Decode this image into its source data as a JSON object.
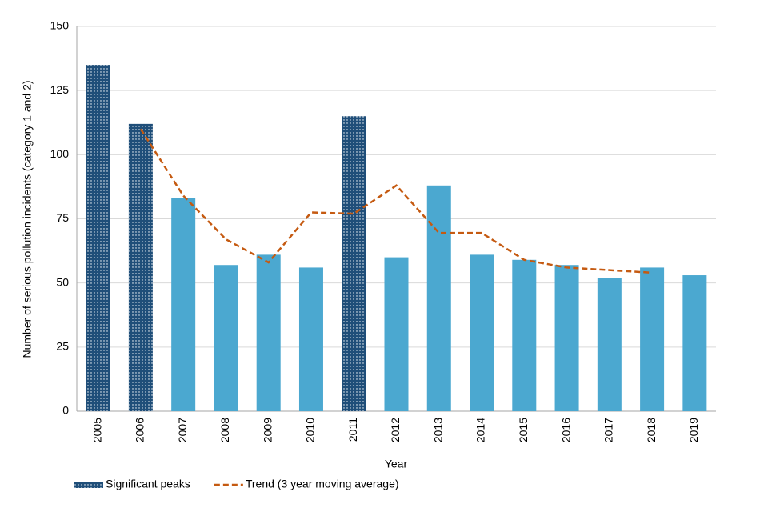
{
  "chart_data": {
    "type": "bar",
    "x_label": "Year",
    "y_label": "Number of serious pollution  incidents (category 1 and 2)",
    "categories": [
      "2005",
      "2006",
      "2007",
      "2008",
      "2009",
      "2010",
      "2011",
      "2012",
      "2013",
      "2014",
      "2015",
      "2016",
      "2017",
      "2018",
      "2019"
    ],
    "series": [
      {
        "name": "Significant peaks",
        "type": "bar",
        "color": "#1f4e79",
        "pattern": "dots",
        "values": [
          135,
          112,
          null,
          null,
          null,
          null,
          115,
          null,
          null,
          null,
          null,
          null,
          null,
          null,
          null
        ]
      },
      {
        "type": "bar",
        "color": "#4ba8d0",
        "values": [
          null,
          null,
          83,
          57,
          61,
          56,
          null,
          60,
          88,
          61,
          59,
          57,
          52,
          56,
          53
        ]
      },
      {
        "name": "Trend (3 year moving average)",
        "type": "line",
        "color": "#c55a11",
        "dashed": true,
        "values": [
          null,
          110,
          84,
          67,
          58,
          77.5,
          77,
          88,
          69.5,
          69.5,
          59,
          56,
          55,
          54,
          null
        ]
      }
    ],
    "ylim": [
      0,
      150
    ],
    "yticks": [
      0,
      25,
      50,
      75,
      100,
      125,
      150
    ],
    "grid": true,
    "legend": "bottom-left"
  }
}
